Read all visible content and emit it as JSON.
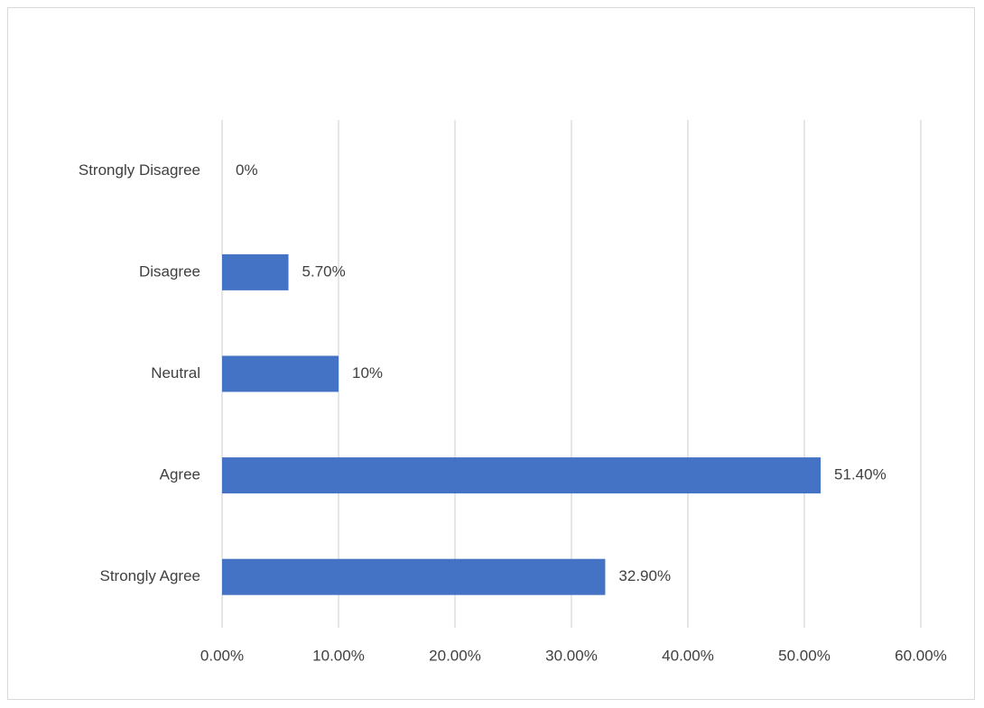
{
  "chart_data": {
    "type": "barh",
    "categories": [
      "Strongly Disagree",
      "Disagree",
      "Neutral",
      "Agree",
      "Strongly Agree"
    ],
    "values": [
      0,
      5.7,
      10,
      51.4,
      32.9
    ],
    "value_labels": [
      "0%",
      "5.70%",
      "10%",
      "51.40%",
      "32.90%"
    ],
    "color": "#4472c4",
    "xlim": [
      0,
      60
    ],
    "xticks": [
      {
        "value": 0,
        "label": "0.00%"
      },
      {
        "value": 10,
        "label": "10.00%"
      },
      {
        "value": 20,
        "label": "20.00%"
      },
      {
        "value": 30,
        "label": "30.00%"
      },
      {
        "value": 40,
        "label": "40.00%"
      },
      {
        "value": 50,
        "label": "50.00%"
      },
      {
        "value": 60,
        "label": "60.00%"
      }
    ],
    "grid": true
  }
}
